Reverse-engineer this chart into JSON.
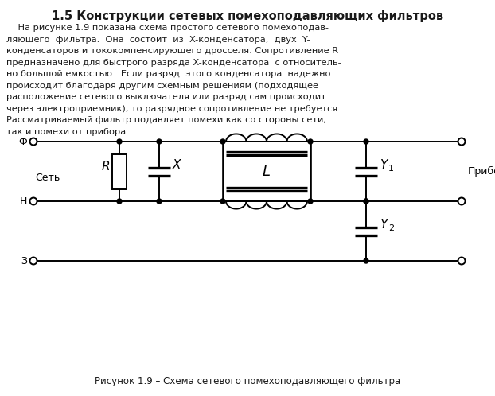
{
  "title": "1.5 Конструкции сетевых помехоподавляющих фильтров",
  "body_lines": [
    "    На рисунке 1.9 показана схема простого сетевого помехоподав-",
    "ляющего  фильтра.  Она  состоит  из  X-конденсатора,  двух  Y-",
    "конденсаторов и тококомпенсирующего дросселя. Сопротивление R",
    "предназначено для быстрого разряда X-конденсатора  с относитель-",
    "но большой емкостью.  Если разряд  этого конденсатора  надежно",
    "происходит благодаря другим схемным решениям (подходящее",
    "расположение сетевого выключателя или разряд сам происходит",
    "через электроприемник), то разрядное сопротивление не требуется.",
    "Рассматриваемый фильтр подавляет помехи как со стороны сети,",
    "так и помехи от прибора."
  ],
  "caption": "Рисунок 1.9 – Схема сетевого помехоподавляющего фильтра",
  "bg_color": "#ffffff",
  "line_color": "#000000",
  "lw": 1.4
}
